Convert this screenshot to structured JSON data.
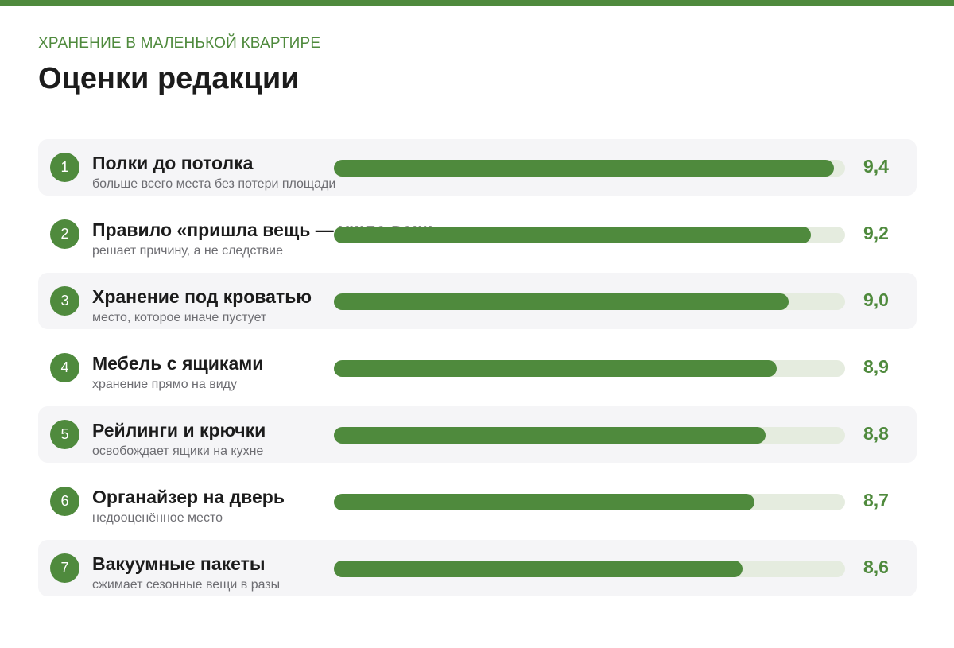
{
  "header": {
    "eyebrow": "ХРАНЕНИЕ В МАЛЕНЬКОЙ КВАРТИРЕ",
    "title": "Оценки редакции"
  },
  "colors": {
    "accent": "#4f8a3d",
    "track": "#e5ecdf",
    "row_shade": "#f5f5f7"
  },
  "chart_data": {
    "type": "bar",
    "orientation": "horizontal",
    "xlim": [
      5.0,
      9.5
    ],
    "categories": [
      "Полки до потолка",
      "Правило «пришла вещь — ушла вещь»",
      "Хранение под кроватью",
      "Мебель с ящиками",
      "Рейлинги и крючки",
      "Органайзер на дверь",
      "Вакуумные пакеты"
    ],
    "values": [
      9.4,
      9.2,
      9.0,
      8.9,
      8.8,
      8.7,
      8.6
    ],
    "items": [
      {
        "rank": "1",
        "label": "Полки до потолка",
        "sub": "больше всего места без потери площади",
        "score": "9,4",
        "value": 9.4
      },
      {
        "rank": "2",
        "label": "Правило «пришла вещь — ушла вещь»",
        "sub": "решает причину, а не следствие",
        "score": "9,2",
        "value": 9.2
      },
      {
        "rank": "3",
        "label": "Хранение под кроватью",
        "sub": "место, которое иначе пустует",
        "score": "9,0",
        "value": 9.0
      },
      {
        "rank": "4",
        "label": "Мебель с ящиками",
        "sub": "хранение прямо на виду",
        "score": "8,9",
        "value": 8.9
      },
      {
        "rank": "5",
        "label": "Рейлинги и крючки",
        "sub": "освобождает ящики на кухне",
        "score": "8,8",
        "value": 8.8
      },
      {
        "rank": "6",
        "label": "Органайзер на дверь",
        "sub": "недооценённое место",
        "score": "8,7",
        "value": 8.7
      },
      {
        "rank": "7",
        "label": "Вакуумные пакеты",
        "sub": "сжимает сезонные вещи в разы",
        "score": "8,6",
        "value": 8.6
      }
    ]
  }
}
